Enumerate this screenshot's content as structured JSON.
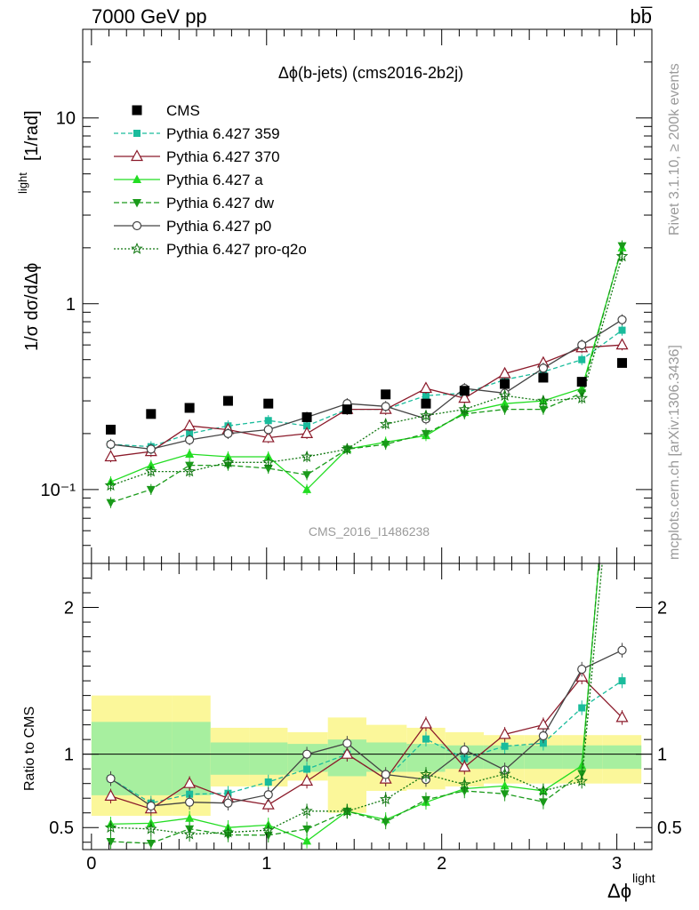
{
  "header": {
    "left": "7000 GeV pp",
    "right": "bb̅"
  },
  "sidebar": {
    "events": "Rivet 3.1.10, ≥ 200k events",
    "source": "mcplots.cern.ch [arXiv:1306.3436]"
  },
  "chart_data": {
    "type": "line",
    "title": "Δϕ(b-jets) (cms2016-2b2j)",
    "watermark": "CMS_2016_I1486238",
    "ylabel_main": "1/σ dσ/dΔϕ",
    "ylabel_main_sup": "light",
    "ylabel_main_unit": "[1/rad]",
    "ylabel_ratio": "Ratio to CMS",
    "xlabel": "Δϕ",
    "xlabel_sup": "light",
    "main_yscale": "log",
    "main_ylim": [
      0.04,
      30
    ],
    "ratio_ylim": [
      0.35,
      2.3
    ],
    "xlim": [
      -0.05,
      3.2
    ],
    "main_yticks": [
      {
        "v": 0.1,
        "label": "10⁻¹"
      },
      {
        "v": 1,
        "label": "1"
      },
      {
        "v": 10,
        "label": "10"
      }
    ],
    "ratio_yticks": [
      {
        "v": 0.5,
        "label": "0.5"
      },
      {
        "v": 1,
        "label": "1"
      },
      {
        "v": 2,
        "label": "2"
      }
    ],
    "xticks": [
      {
        "v": 0,
        "label": "0"
      },
      {
        "v": 1,
        "label": "1"
      },
      {
        "v": 2,
        "label": "2"
      },
      {
        "v": 3,
        "label": "3"
      }
    ],
    "bins": [
      [
        0.0,
        0.46
      ],
      [
        0.46,
        0.68
      ],
      [
        0.68,
        0.9
      ],
      [
        0.9,
        1.12
      ],
      [
        1.12,
        1.35
      ],
      [
        1.35,
        1.57
      ],
      [
        1.57,
        1.8
      ],
      [
        1.8,
        2.02
      ],
      [
        2.02,
        2.24
      ],
      [
        2.24,
        2.47
      ],
      [
        2.47,
        2.69
      ],
      [
        2.69,
        2.92
      ],
      [
        2.92,
        3.14
      ]
    ],
    "band_total": [
      [
        0.58,
        1.4
      ],
      [
        0.58,
        1.4
      ],
      [
        0.78,
        1.18
      ],
      [
        0.78,
        1.18
      ],
      [
        0.82,
        1.15
      ],
      [
        0.6,
        1.25
      ],
      [
        0.75,
        1.2
      ],
      [
        0.76,
        1.18
      ],
      [
        0.78,
        1.15
      ],
      [
        0.8,
        1.13
      ],
      [
        0.8,
        1.13
      ],
      [
        0.8,
        1.13
      ],
      [
        0.8,
        1.13
      ]
    ],
    "band_stat": [
      [
        0.72,
        1.22
      ],
      [
        0.72,
        1.22
      ],
      [
        0.86,
        1.08
      ],
      [
        0.86,
        1.08
      ],
      [
        0.88,
        1.07
      ],
      [
        0.85,
        1.1
      ],
      [
        0.88,
        1.08
      ],
      [
        0.88,
        1.07
      ],
      [
        0.9,
        1.06
      ],
      [
        0.9,
        1.06
      ],
      [
        0.9,
        1.06
      ],
      [
        0.9,
        1.06
      ],
      [
        0.9,
        1.06
      ]
    ],
    "x": [
      0.11,
      0.34,
      0.56,
      0.78,
      1.01,
      1.23,
      1.46,
      1.68,
      1.91,
      2.13,
      2.36,
      2.58,
      2.8,
      3.03
    ],
    "data": {
      "name": "CMS",
      "values": [
        0.21,
        0.255,
        0.275,
        0.3,
        0.29,
        0.245,
        0.27,
        0.325,
        0.29,
        0.34,
        0.37,
        0.4,
        0.38,
        0.48
      ]
    },
    "series": [
      {
        "name": "Pythia 6.427 359",
        "color": "#1abc9c",
        "dash": "5,3",
        "marker": "square-filled",
        "values": [
          0.175,
          0.17,
          0.2,
          0.22,
          0.235,
          0.22,
          0.27,
          0.27,
          0.32,
          0.33,
          0.39,
          0.43,
          0.5,
          0.72
        ]
      },
      {
        "name": "Pythia 6.427 370",
        "color": "#8b1a2a",
        "dash": "",
        "marker": "triangle-open",
        "values": [
          0.15,
          0.16,
          0.22,
          0.21,
          0.19,
          0.2,
          0.27,
          0.27,
          0.35,
          0.31,
          0.42,
          0.48,
          0.58,
          0.6
        ]
      },
      {
        "name": "Pythia 6.427 a",
        "color": "#22dd22",
        "dash": "",
        "marker": "triangle-filled",
        "values": [
          0.11,
          0.135,
          0.155,
          0.15,
          0.15,
          0.1,
          0.165,
          0.18,
          0.195,
          0.26,
          0.29,
          0.3,
          0.35,
          2.0
        ]
      },
      {
        "name": "Pythia 6.427 dw",
        "color": "#1a9a1a",
        "dash": "6,3",
        "marker": "triangle-down-filled",
        "values": [
          0.085,
          0.1,
          0.135,
          0.135,
          0.13,
          0.12,
          0.165,
          0.175,
          0.2,
          0.255,
          0.27,
          0.27,
          0.33,
          2.05
        ]
      },
      {
        "name": "Pythia 6.427 p0",
        "color": "#444444",
        "dash": "",
        "marker": "circle-open",
        "values": [
          0.175,
          0.165,
          0.185,
          0.2,
          0.21,
          0.245,
          0.29,
          0.28,
          0.24,
          0.35,
          0.33,
          0.45,
          0.6,
          0.82
        ]
      },
      {
        "name": "Pythia 6.427 pro-q2o",
        "color": "#117711",
        "dash": "2,2",
        "marker": "star-open",
        "values": [
          0.105,
          0.125,
          0.125,
          0.14,
          0.14,
          0.15,
          0.165,
          0.225,
          0.25,
          0.27,
          0.32,
          0.3,
          0.31,
          1.8
        ]
      }
    ]
  }
}
